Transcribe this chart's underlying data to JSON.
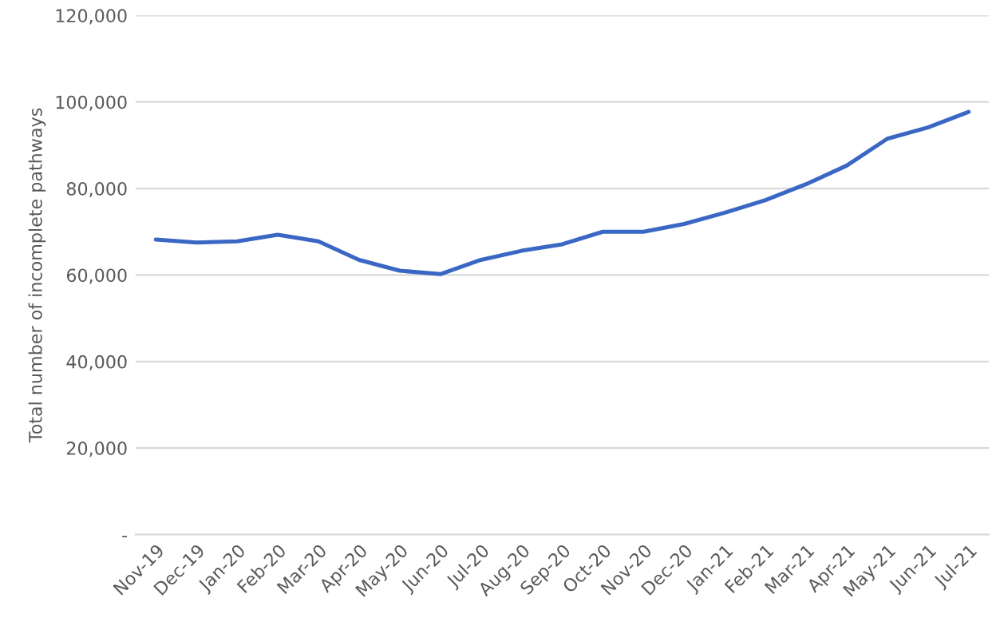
{
  "chart_data": {
    "type": "line",
    "ylabel": "Total number of incomplete pathways",
    "categories": [
      "Nov-19",
      "Dec-19",
      "Jan-20",
      "Feb-20",
      "Mar-20",
      "Apr-20",
      "May-20",
      "Jun-20",
      "Jul-20",
      "Aug-20",
      "Sep-20",
      "Oct-20",
      "Nov-20",
      "Dec-20",
      "Jan-21",
      "Feb-21",
      "Mar-21",
      "Apr-21",
      "May-21",
      "Jun-21",
      "Jul-21"
    ],
    "series": [
      {
        "color": "#3a67c4",
        "values": [
          68200,
          67500,
          67800,
          69300,
          67800,
          63500,
          61000,
          60200,
          63500,
          65600,
          67100,
          70000,
          70000,
          71800,
          74400,
          77300,
          81000,
          85300,
          91500,
          94100,
          97700
        ]
      }
    ],
    "ylim": [
      0,
      120000
    ],
    "yticks": [
      {
        "value": 0,
        "label": "-"
      },
      {
        "value": 20000,
        "label": "20,000"
      },
      {
        "value": 40000,
        "label": "40,000"
      },
      {
        "value": 60000,
        "label": "60,000"
      },
      {
        "value": 80000,
        "label": "80,000"
      },
      {
        "value": 100000,
        "label": "100,000"
      },
      {
        "value": 120000,
        "label": "120,000"
      }
    ],
    "grid": "y",
    "legend": false,
    "marker": "none",
    "line_style": "solid"
  }
}
